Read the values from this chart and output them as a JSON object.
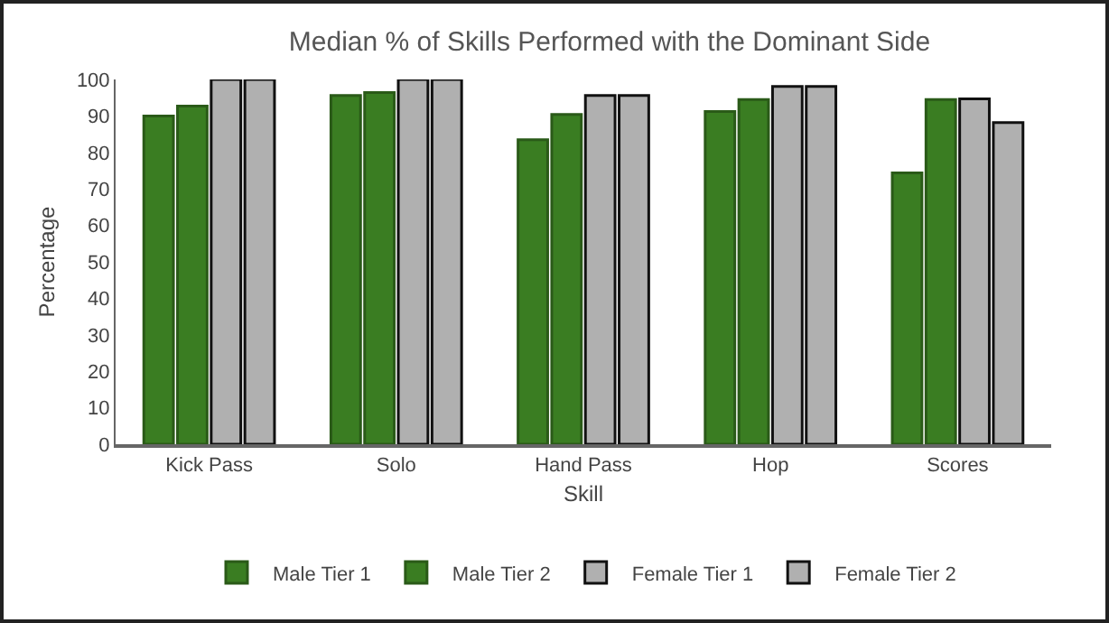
{
  "chart_data": {
    "type": "bar",
    "title": "Median % of Skills Performed with the Dominant Side",
    "xlabel": "Skill",
    "ylabel": "Percentage",
    "categories": [
      "Kick Pass",
      "Solo",
      "Hand Pass",
      "Hop",
      "Scores"
    ],
    "series": [
      {
        "name": "Male Tier 1",
        "color": "#3a7d22",
        "values": [
          90,
          95.6,
          83.5,
          91.2,
          74.4
        ]
      },
      {
        "name": "Male Tier 2",
        "color": "#3a7d22",
        "values": [
          92.7,
          96.4,
          90.4,
          94.5,
          94.5
        ]
      },
      {
        "name": "Female Tier 1",
        "color": "#b0b0b0",
        "values": [
          100,
          100,
          95.6,
          98.1,
          94.7
        ]
      },
      {
        "name": "Female Tier 2",
        "color": "#b0b0b0",
        "values": [
          100,
          100,
          95.6,
          98.1,
          88.2
        ]
      }
    ],
    "ylim": [
      0,
      100
    ],
    "yticks": [
      0,
      10,
      20,
      30,
      40,
      50,
      60,
      70,
      80,
      90,
      100
    ],
    "grid": false,
    "legend": "bottom"
  }
}
